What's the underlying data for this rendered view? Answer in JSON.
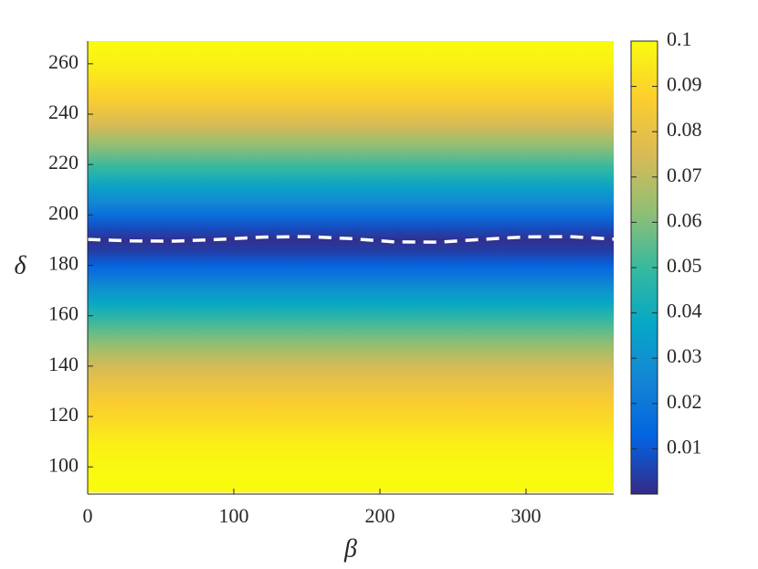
{
  "chart_data": {
    "type": "heatmap",
    "x_label": "β",
    "y_label": "δ",
    "xlim": [
      0,
      360
    ],
    "ylim": [
      89.2,
      269
    ],
    "xticks": [
      0,
      100,
      200,
      300
    ],
    "yticks": [
      100,
      120,
      140,
      160,
      180,
      200,
      220,
      240,
      260
    ],
    "colormap": "parula",
    "clim": [
      0,
      0.1
    ],
    "cticks": [
      0.01,
      0.02,
      0.03,
      0.04,
      0.05,
      0.06,
      0.07,
      0.08,
      0.09,
      0.1
    ],
    "heatmap": {
      "y": [
        90,
        95,
        100,
        105,
        110,
        115,
        120,
        125,
        130,
        135,
        140,
        145,
        150,
        155,
        160,
        165,
        170,
        175,
        180,
        185,
        190,
        195,
        200,
        205,
        210,
        215,
        220,
        225,
        230,
        235,
        240,
        245,
        250,
        255,
        260,
        265,
        270
      ],
      "values": [
        0.1,
        0.1,
        0.099,
        0.098,
        0.096,
        0.093,
        0.09,
        0.087,
        0.083,
        0.079,
        0.074,
        0.068,
        0.061,
        0.054,
        0.046,
        0.038,
        0.03,
        0.021,
        0.013,
        0.005,
        0.001,
        0.008,
        0.017,
        0.026,
        0.034,
        0.043,
        0.051,
        0.059,
        0.066,
        0.074,
        0.08,
        0.086,
        0.09,
        0.094,
        0.097,
        0.099,
        0.1
      ]
    },
    "line": {
      "color": "#ffffff",
      "style": "dashed",
      "x": [
        0,
        30,
        60,
        90,
        120,
        150,
        180,
        210,
        240,
        270,
        300,
        330,
        360
      ],
      "values": [
        190.3,
        189.7,
        189.6,
        190.3,
        191.2,
        191.4,
        190.6,
        189.3,
        189.2,
        190.3,
        191.3,
        191.4,
        190.4
      ]
    }
  }
}
